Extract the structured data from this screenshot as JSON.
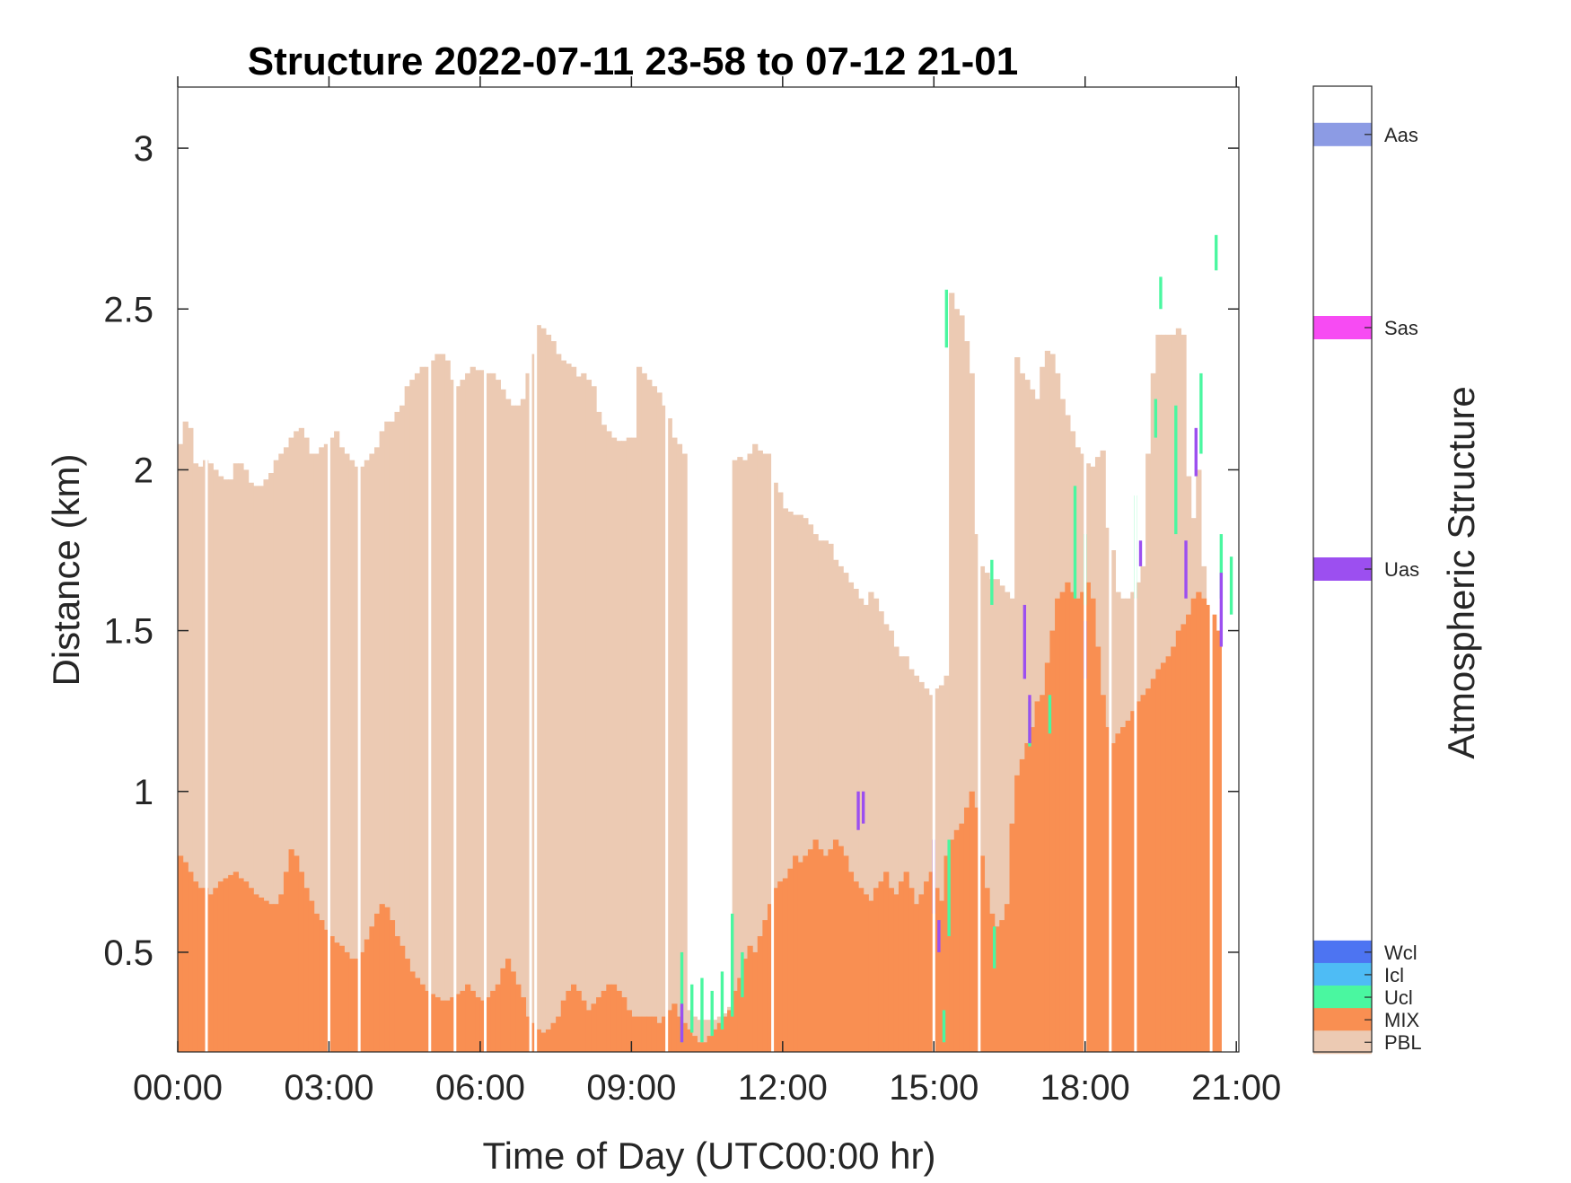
{
  "chart_data": {
    "type": "area",
    "title": "Structure 2022-07-11 23-58 to 07-12 21-01",
    "xlabel": "Time of Day (UTC00:00 hr)",
    "ylabel": "Distance (km)",
    "xlim_hours": [
      0,
      21.05
    ],
    "ylim": [
      0.19,
      3.19
    ],
    "xticks": [
      {
        "hours": 0,
        "label": "00:00"
      },
      {
        "hours": 3,
        "label": "03:00"
      },
      {
        "hours": 6,
        "label": "06:00"
      },
      {
        "hours": 9,
        "label": "09:00"
      },
      {
        "hours": 12,
        "label": "12:00"
      },
      {
        "hours": 15,
        "label": "15:00"
      },
      {
        "hours": 18,
        "label": "18:00"
      },
      {
        "hours": 21,
        "label": "21:00"
      }
    ],
    "yticks": [
      {
        "value": 0.5,
        "label": "0.5"
      },
      {
        "value": 1,
        "label": "1"
      },
      {
        "value": 1.5,
        "label": "1.5"
      },
      {
        "value": 2,
        "label": "2"
      },
      {
        "value": 2.5,
        "label": "2.5"
      },
      {
        "value": 3,
        "label": "3"
      }
    ],
    "colorbar": {
      "label": "Atmospheric Structure",
      "categories": [
        {
          "name": "Aas",
          "color": "#8c9be4",
          "level": 3.04
        },
        {
          "name": "Sas",
          "color": "#f74bf3",
          "level": 2.44
        },
        {
          "name": "Uas",
          "color": "#9c4ff0",
          "level": 1.69
        },
        {
          "name": "Wcl",
          "color": "#4d74f2",
          "level": 0.5
        },
        {
          "name": "Icl",
          "color": "#4ebcf5",
          "level": 0.43
        },
        {
          "name": "Ucl",
          "color": "#4af7a0",
          "level": 0.36
        },
        {
          "name": "MIX",
          "color": "#f98f52",
          "level": 0.29
        },
        {
          "name": "PBL",
          "color": "#eccab3",
          "level": 0.22
        }
      ]
    },
    "series": [
      {
        "name": "PBL",
        "t_start": 0,
        "t_step": 0.1,
        "values": [
          2.08,
          2.15,
          2.13,
          2.02,
          2.01,
          2.03,
          2.02,
          2.0,
          1.98,
          1.97,
          1.97,
          2.02,
          2.02,
          2.0,
          1.96,
          1.95,
          1.95,
          1.97,
          1.99,
          2.03,
          2.05,
          2.07,
          2.1,
          2.12,
          2.13,
          2.1,
          2.05,
          2.05,
          2.07,
          2.08,
          2.1,
          2.12,
          2.07,
          2.05,
          2.03,
          2.01,
          2.01,
          2.03,
          2.05,
          2.07,
          2.12,
          2.15,
          2.15,
          2.18,
          2.2,
          2.26,
          2.28,
          2.3,
          2.32,
          2.32,
          2.34,
          2.36,
          2.36,
          2.34,
          2.28,
          2.26,
          2.28,
          2.3,
          2.32,
          2.31,
          2.31,
          2.3,
          2.3,
          2.28,
          2.25,
          2.22,
          2.2,
          2.2,
          2.22,
          2.3,
          2.36,
          2.45,
          2.44,
          2.42,
          2.4,
          2.36,
          2.34,
          2.33,
          2.32,
          2.29,
          2.3,
          2.28,
          2.26,
          2.18,
          2.14,
          2.12,
          2.1,
          2.09,
          2.09,
          2.1,
          2.1,
          2.32,
          2.3,
          2.28,
          2.26,
          2.24,
          2.2,
          2.16,
          2.1,
          2.08,
          2.05,
          0.32,
          0.3,
          0.29,
          0.29,
          0.29,
          0.29,
          0.3,
          0.31,
          0.33,
          2.03,
          2.04,
          2.03,
          2.05,
          2.08,
          2.06,
          2.05,
          2.05,
          1.96,
          1.93,
          1.88,
          1.87,
          1.86,
          1.86,
          1.85,
          1.83,
          1.8,
          1.78,
          1.78,
          1.77,
          1.72,
          1.7,
          1.68,
          1.65,
          1.63,
          1.6,
          1.58,
          1.62,
          1.6,
          1.56,
          1.52,
          1.5,
          1.45,
          1.42,
          1.42,
          1.38,
          1.36,
          1.34,
          1.32,
          1.3,
          1.32,
          1.33,
          1.36,
          2.55,
          2.5,
          2.48,
          2.4,
          2.3,
          1.8,
          1.7,
          1.68,
          1.66,
          1.66,
          1.64,
          1.62,
          1.6,
          2.35,
          2.3,
          2.28,
          2.25,
          2.22,
          2.32,
          2.37,
          2.36,
          2.3,
          2.22,
          2.17,
          2.12,
          2.07,
          2.05,
          2.02,
          2.01,
          2.04,
          2.06,
          1.82,
          1.75,
          1.62,
          1.6,
          1.6,
          1.62,
          1.65,
          1.7,
          2.05,
          2.3,
          2.42,
          2.42,
          2.42,
          2.42,
          2.44,
          2.42,
          1.98,
          1.85,
          2.0,
          1.7
        ]
      },
      {
        "name": "MIX",
        "t_start": 0,
        "t_step": 0.1,
        "values": [
          0.8,
          0.78,
          0.75,
          0.72,
          0.7,
          0.7,
          0.68,
          0.7,
          0.72,
          0.73,
          0.74,
          0.75,
          0.73,
          0.72,
          0.7,
          0.68,
          0.67,
          0.66,
          0.65,
          0.65,
          0.68,
          0.75,
          0.82,
          0.8,
          0.75,
          0.7,
          0.66,
          0.62,
          0.6,
          0.57,
          0.55,
          0.53,
          0.52,
          0.5,
          0.48,
          0.48,
          0.5,
          0.54,
          0.58,
          0.62,
          0.65,
          0.64,
          0.6,
          0.55,
          0.52,
          0.48,
          0.44,
          0.42,
          0.4,
          0.38,
          0.37,
          0.36,
          0.35,
          0.35,
          0.36,
          0.37,
          0.38,
          0.4,
          0.38,
          0.36,
          0.35,
          0.36,
          0.38,
          0.4,
          0.45,
          0.48,
          0.44,
          0.4,
          0.36,
          0.3,
          0.28,
          0.26,
          0.25,
          0.26,
          0.28,
          0.3,
          0.35,
          0.38,
          0.4,
          0.38,
          0.35,
          0.32,
          0.34,
          0.36,
          0.38,
          0.4,
          0.4,
          0.38,
          0.36,
          0.32,
          0.3,
          0.3,
          0.3,
          0.3,
          0.3,
          0.28,
          0.3,
          0.32,
          0.34,
          0.3,
          0.28,
          0.26,
          0.24,
          0.22,
          0.22,
          0.24,
          0.26,
          0.28,
          0.3,
          0.32,
          0.38,
          0.42,
          0.48,
          0.52,
          0.5,
          0.55,
          0.6,
          0.65,
          0.7,
          0.72,
          0.73,
          0.76,
          0.8,
          0.78,
          0.8,
          0.82,
          0.85,
          0.82,
          0.8,
          0.82,
          0.85,
          0.83,
          0.8,
          0.75,
          0.72,
          0.7,
          0.68,
          0.66,
          0.7,
          0.72,
          0.75,
          0.7,
          0.68,
          0.72,
          0.75,
          0.7,
          0.65,
          0.68,
          0.72,
          0.75,
          0.7,
          0.66,
          0.8,
          0.85,
          0.88,
          0.9,
          0.95,
          1.0,
          0.95,
          0.8,
          0.7,
          0.62,
          0.58,
          0.6,
          0.65,
          0.9,
          1.05,
          1.1,
          1.15,
          1.2,
          1.28,
          1.3,
          1.4,
          1.5,
          1.6,
          1.62,
          1.65,
          1.62,
          1.6,
          1.62,
          1.65,
          1.6,
          1.45,
          1.3,
          1.2,
          1.15,
          1.18,
          1.2,
          1.22,
          1.25,
          1.28,
          1.3,
          1.32,
          1.35,
          1.38,
          1.4,
          1.42,
          1.45,
          1.5,
          1.52,
          1.55,
          1.6,
          1.62,
          1.6,
          1.58,
          1.55,
          1.5
        ]
      },
      {
        "name": "Ucl",
        "segments": [
          {
            "t": 10.0,
            "y0": 0.22,
            "y1": 0.5
          },
          {
            "t": 10.2,
            "y0": 0.25,
            "y1": 0.4
          },
          {
            "t": 10.4,
            "y0": 0.22,
            "y1": 0.42
          },
          {
            "t": 10.6,
            "y0": 0.24,
            "y1": 0.38
          },
          {
            "t": 10.8,
            "y0": 0.26,
            "y1": 0.44
          },
          {
            "t": 11.0,
            "y0": 0.3,
            "y1": 0.62
          },
          {
            "t": 11.2,
            "y0": 0.36,
            "y1": 0.5
          },
          {
            "t": 15.2,
            "y0": 0.22,
            "y1": 0.32
          },
          {
            "t": 15.3,
            "y0": 0.55,
            "y1": 0.85
          },
          {
            "t": 15.25,
            "y0": 2.38,
            "y1": 2.56
          },
          {
            "t": 16.2,
            "y0": 0.45,
            "y1": 0.58
          },
          {
            "t": 16.15,
            "y0": 1.58,
            "y1": 1.72
          },
          {
            "t": 16.9,
            "y0": 1.14,
            "y1": 1.28
          },
          {
            "t": 17.3,
            "y0": 1.18,
            "y1": 1.3
          },
          {
            "t": 17.8,
            "y0": 1.6,
            "y1": 1.95
          },
          {
            "t": 18.0,
            "y0": 1.58,
            "y1": 1.8
          },
          {
            "t": 19.0,
            "y0": 1.6,
            "y1": 1.92
          },
          {
            "t": 19.5,
            "y0": 2.5,
            "y1": 2.6
          },
          {
            "t": 19.4,
            "y0": 2.1,
            "y1": 2.22
          },
          {
            "t": 19.8,
            "y0": 1.8,
            "y1": 2.2
          },
          {
            "t": 20.3,
            "y0": 2.05,
            "y1": 2.3
          },
          {
            "t": 20.6,
            "y0": 2.62,
            "y1": 2.73
          },
          {
            "t": 20.7,
            "y0": 1.6,
            "y1": 1.8
          },
          {
            "t": 20.9,
            "y0": 1.55,
            "y1": 1.73
          }
        ]
      },
      {
        "name": "Uas",
        "segments": [
          {
            "t": 10.0,
            "y0": 0.22,
            "y1": 0.34
          },
          {
            "t": 13.5,
            "y0": 0.88,
            "y1": 1.0
          },
          {
            "t": 13.6,
            "y0": 0.9,
            "y1": 1.0
          },
          {
            "t": 15.0,
            "y0": 0.62,
            "y1": 0.85
          },
          {
            "t": 15.1,
            "y0": 0.5,
            "y1": 0.6
          },
          {
            "t": 16.8,
            "y0": 1.35,
            "y1": 1.58
          },
          {
            "t": 16.9,
            "y0": 1.15,
            "y1": 1.3
          },
          {
            "t": 18.0,
            "y0": 1.35,
            "y1": 1.53
          },
          {
            "t": 19.1,
            "y0": 1.7,
            "y1": 1.78
          },
          {
            "t": 20.0,
            "y0": 1.6,
            "y1": 1.78
          },
          {
            "t": 20.2,
            "y0": 1.98,
            "y1": 2.13
          },
          {
            "t": 20.7,
            "y0": 1.45,
            "y1": 1.68
          }
        ]
      }
    ]
  }
}
